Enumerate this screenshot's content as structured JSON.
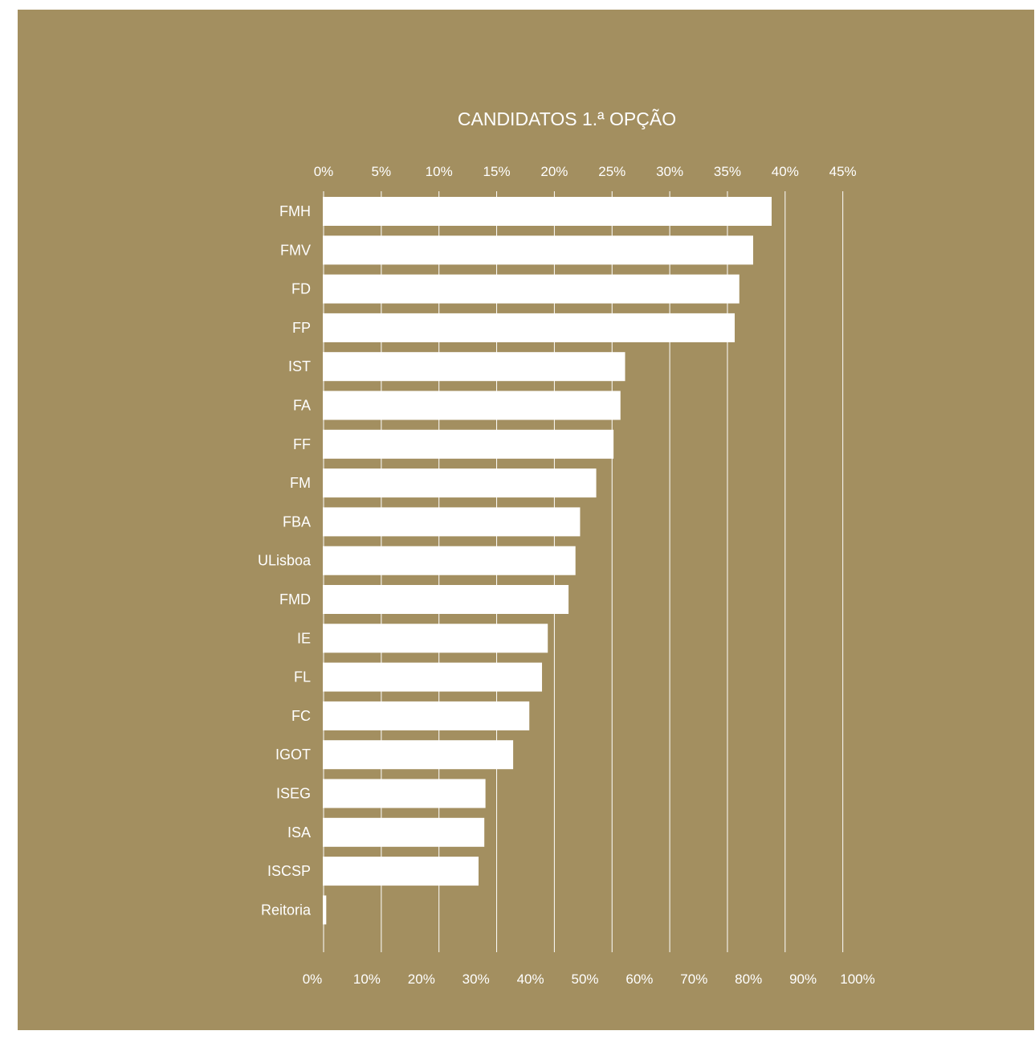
{
  "colors": {
    "background": "#a38f60",
    "bars": "#ffffff",
    "text": "#ffffff",
    "gridlines": "#ffffff"
  },
  "chart_data": {
    "type": "bar",
    "orientation": "horizontal",
    "title": "CANDIDATOS 1.ª OPÇÃO",
    "xlabel": "",
    "ylabel": "",
    "grid": true,
    "top_axis": {
      "ticks": [
        "0%",
        "5%",
        "10%",
        "15%",
        "20%",
        "25%",
        "30%",
        "35%",
        "40%",
        "45%"
      ],
      "range": [
        0,
        45
      ]
    },
    "bottom_axis": {
      "ticks": [
        "0%",
        "10%",
        "20%",
        "30%",
        "40%",
        "50%",
        "60%",
        "70%",
        "80%",
        "90%",
        "100%"
      ]
    },
    "categories": [
      "FMH",
      "FMV",
      "FD",
      "FP",
      "IST",
      "FA",
      "FF",
      "FM",
      "FBA",
      "ULisboa",
      "FMD",
      "IE",
      "FL",
      "FC",
      "IGOT",
      "ISEG",
      "ISA",
      "ISCSP",
      "Reitoria"
    ],
    "values": [
      38.9,
      37.3,
      36.1,
      35.7,
      26.2,
      25.8,
      25.2,
      23.7,
      22.3,
      21.9,
      21.3,
      19.5,
      19.0,
      17.9,
      16.5,
      14.1,
      14.0,
      13.5,
      0.3
    ],
    "value_unit": "%"
  }
}
